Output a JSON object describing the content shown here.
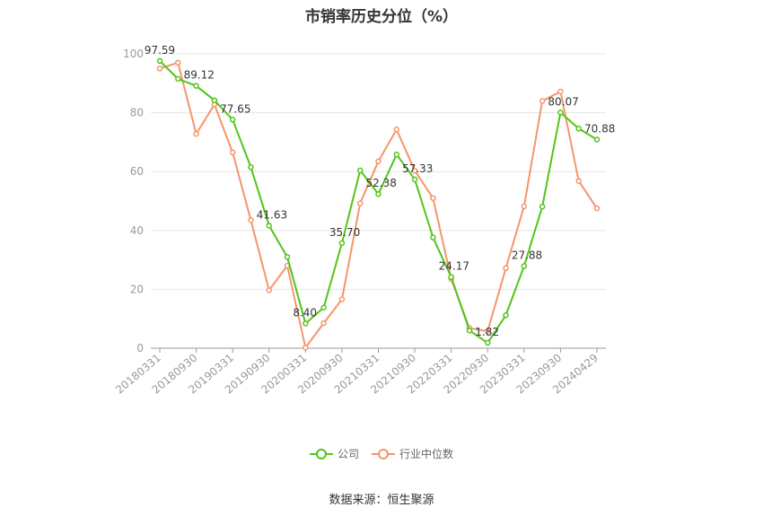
{
  "chart_data": {
    "type": "line",
    "title": "市销率历史分位（%）",
    "ylim": [
      0,
      100
    ],
    "yticks": [
      0,
      20,
      40,
      60,
      80,
      100
    ],
    "grid": true,
    "legend_position": "bottom",
    "categories": [
      "20180331",
      "20180630",
      "20180930",
      "20181231",
      "20190331",
      "20190630",
      "20190930",
      "20191231",
      "20200331",
      "20200630",
      "20200930",
      "20201231",
      "20210331",
      "20210630",
      "20210930",
      "20211231",
      "20220331",
      "20220630",
      "20220930",
      "20221231",
      "20230331",
      "20230630",
      "20230930",
      "20231231",
      "20240429"
    ],
    "xtick_labels": [
      "20180331",
      "20180930",
      "20190331",
      "20190930",
      "20200331",
      "20200930",
      "20210331",
      "20210930",
      "20220331",
      "20220930",
      "20230331",
      "20230930",
      "20240429"
    ],
    "series": [
      {
        "name": "公司",
        "color": "#52c41a",
        "values": [
          97.59,
          91.5,
          89.12,
          84.2,
          77.65,
          61.5,
          41.63,
          31.0,
          8.4,
          13.8,
          35.7,
          60.4,
          52.38,
          65.8,
          57.33,
          37.6,
          24.17,
          6.0,
          1.82,
          11.2,
          27.88,
          48.1,
          80.07,
          74.6,
          70.88
        ],
        "data_labels": {
          "0": "97.59",
          "2": "89.12",
          "4": "77.65",
          "6": "41.63",
          "8": "8.40",
          "10": "35.70",
          "12": "52.38",
          "14": "57.33",
          "16": "24.17",
          "18": "1.82",
          "20": "27.88",
          "22": "80.07",
          "24": "70.88"
        }
      },
      {
        "name": "行业中位数",
        "color": "#f4956b",
        "values": [
          95.0,
          97.0,
          72.8,
          82.8,
          66.5,
          43.5,
          19.7,
          28.0,
          0.2,
          8.5,
          16.6,
          49.2,
          63.5,
          74.3,
          60.3,
          51.0,
          23.5,
          6.8,
          5.8,
          27.2,
          48.2,
          84.0,
          87.2,
          56.8,
          47.5
        ]
      }
    ]
  },
  "source": "数据来源：恒生聚源"
}
